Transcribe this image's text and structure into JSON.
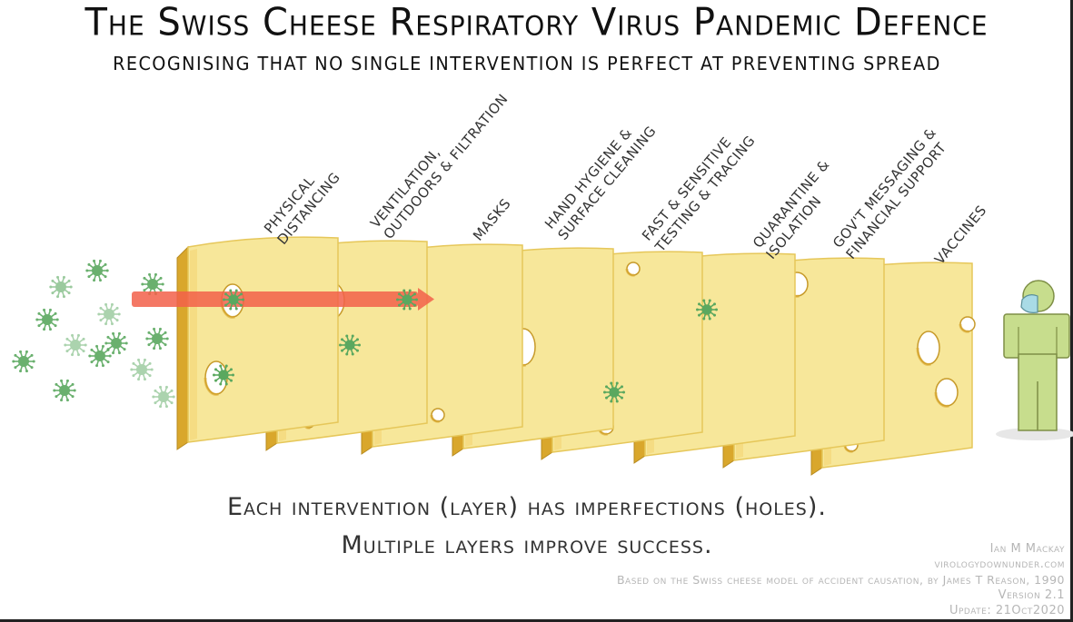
{
  "title": "The Swiss Cheese Respiratory Virus Pandemic Defence",
  "subtitle": "RECOGNISING THAT NO SINGLE INTERVENTION IS PERFECT AT PREVENTING SPREAD",
  "layers": [
    {
      "line1": "PHYSICAL",
      "line2": "DISTANCING"
    },
    {
      "line1": "VENTILATION,",
      "line2": "OUTDOORS & FILTRATION"
    },
    {
      "line1": "MASKS",
      "line2": ""
    },
    {
      "line1": "HAND HYGIENE &",
      "line2": "SURFACE CLEANING"
    },
    {
      "line1": "FAST & SENSITIVE",
      "line2": "TESTING & TRACING"
    },
    {
      "line1": "QUARANTINE &",
      "line2": "ISOLATION"
    },
    {
      "line1": "GOV'T MESSAGING &",
      "line2": "FINANCIAL SUPPORT"
    },
    {
      "line1": "VACCINES",
      "line2": ""
    }
  ],
  "caption": {
    "line1": "Each intervention (layer) has imperfections (holes).",
    "line2": "Multiple layers improve success."
  },
  "credits": {
    "author": "Ian M Mackay",
    "site": "virologydownunder.com",
    "based_on": "Based on the Swiss cheese model of accident causation, by James T Reason, 1990",
    "version": "Version 2.1",
    "update": "Update: 21Oct2020"
  },
  "colors": {
    "cheese": "#f7e79a",
    "cheese_edge": "#e6c75a",
    "cheese_dark": "#d9a72c",
    "virus": "#5aa85f",
    "arrow": "#f2604a",
    "person": "#c7dd8d",
    "mask": "#a9dbe6"
  }
}
